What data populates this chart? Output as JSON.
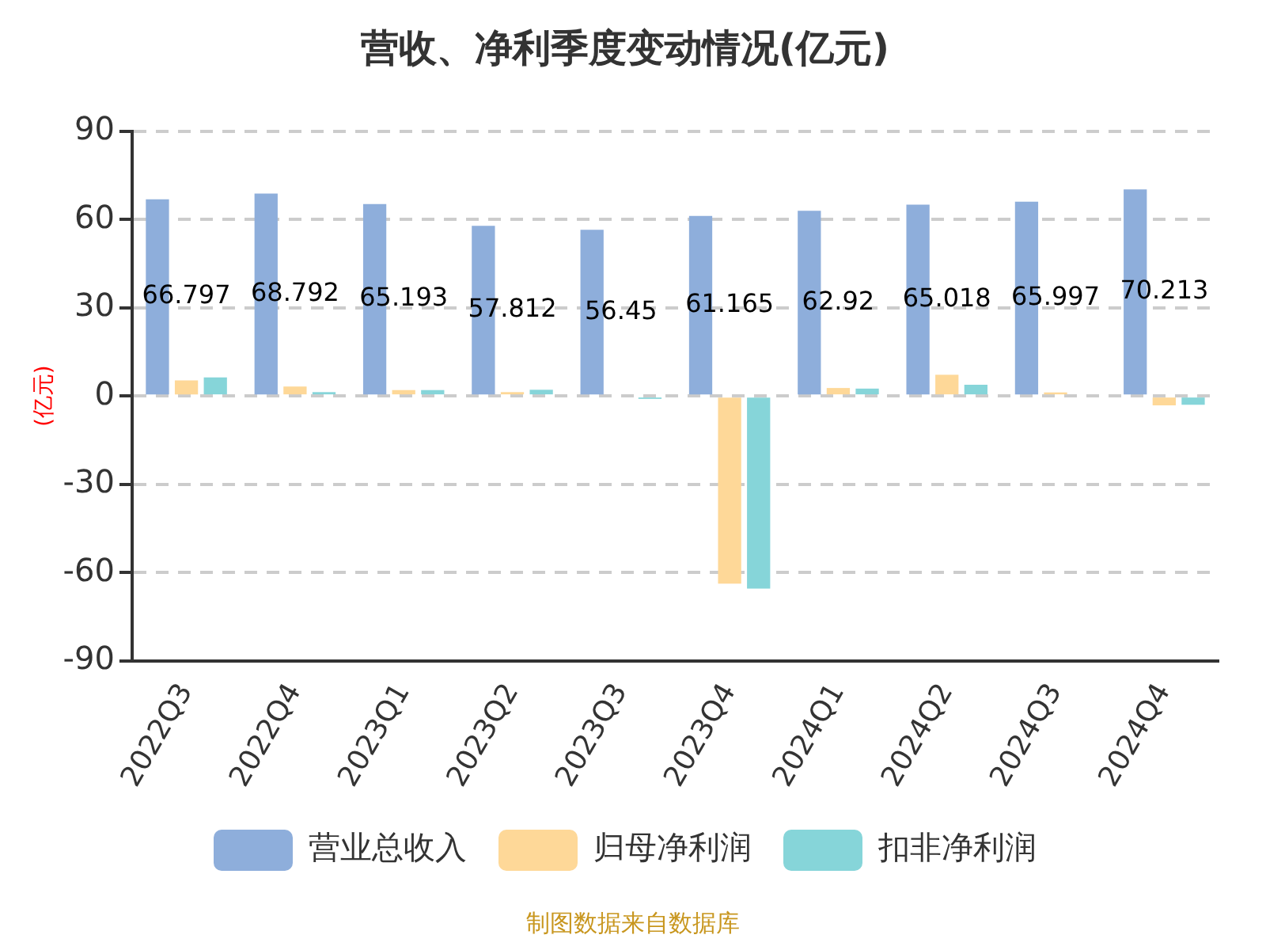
{
  "chart_data": {
    "type": "bar",
    "title": "营收、净利季度变动情况(亿元)",
    "ylabel": "(亿元)",
    "categories": [
      "2022Q3",
      "2022Q4",
      "2023Q1",
      "2023Q2",
      "2023Q3",
      "2023Q4",
      "2024Q1",
      "2024Q2",
      "2024Q3",
      "2024Q4"
    ],
    "series": [
      {
        "name": "营业总收入",
        "color": "#8eaedb",
        "values": [
          66.797,
          68.792,
          65.193,
          57.812,
          56.45,
          61.165,
          62.92,
          65.018,
          65.997,
          70.213
        ],
        "value_labels": [
          "66.797",
          "68.792",
          "65.193",
          "57.812",
          "56.45",
          "61.165",
          "62.92",
          "65.018",
          "65.997",
          "70.213"
        ]
      },
      {
        "name": "归母净利润",
        "color": "#fed898",
        "values": [
          5.3,
          3.2,
          2,
          1.3,
          null,
          -63.8,
          2.7,
          7.2,
          1.2,
          -3.2
        ]
      },
      {
        "name": "扣非净利润",
        "color": "#86d5d9",
        "values": [
          6.3,
          1.3,
          2,
          2.1,
          -1,
          -65.5,
          2.5,
          3.8,
          null,
          -3
        ]
      }
    ],
    "ylim": [
      -90,
      90
    ],
    "yticks": [
      -90,
      -60,
      -30,
      0,
      30,
      60,
      90
    ],
    "grid": "y",
    "legend": "bottom",
    "annotations": [
      "制图数据来自数据库"
    ]
  }
}
